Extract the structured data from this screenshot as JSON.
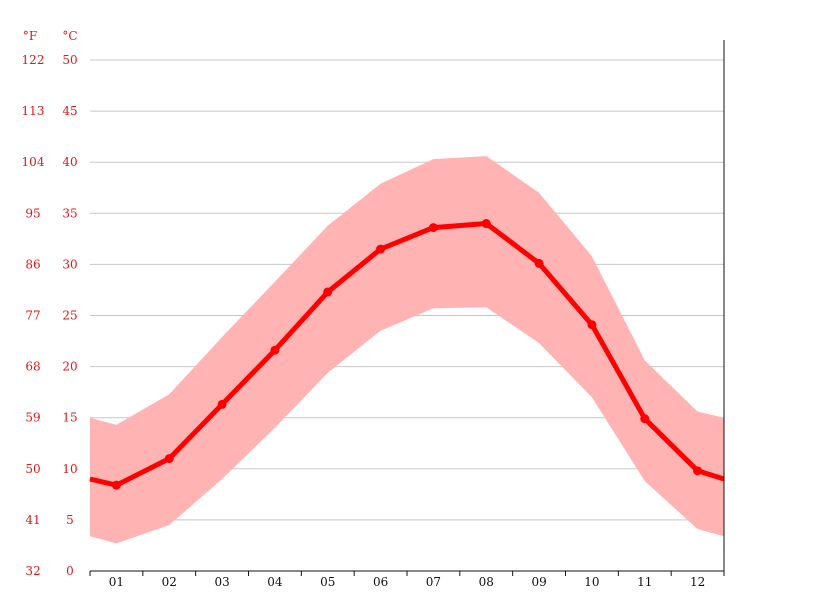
{
  "chart_data": {
    "type": "area",
    "unit_left": "°F",
    "unit_right": "°C",
    "categories": [
      "01",
      "02",
      "03",
      "04",
      "05",
      "06",
      "07",
      "08",
      "09",
      "10",
      "11",
      "12"
    ],
    "x": [
      1,
      2,
      3,
      4,
      5,
      6,
      7,
      8,
      9,
      10,
      11,
      12
    ],
    "y_ticks_c": [
      "0",
      "5",
      "10",
      "15",
      "20",
      "25",
      "30",
      "35",
      "40",
      "45",
      "50"
    ],
    "y_ticks_f": [
      "32",
      "41",
      "50",
      "59",
      "68",
      "77",
      "86",
      "95",
      "104",
      "113",
      "122"
    ],
    "ylim": [
      0,
      50
    ],
    "grid": true,
    "series": [
      {
        "kind": "line",
        "color": "#ff0000",
        "edge_start": 9.0,
        "edge_end": 9.0,
        "values": [
          8.4,
          11.0,
          16.3,
          21.6,
          27.3,
          31.5,
          33.6,
          34.0,
          30.1,
          24.1,
          14.9,
          9.8
        ]
      },
      {
        "kind": "band",
        "color": "#ffb3b3",
        "high_edge_start": 15.0,
        "high_edge_end": 15.0,
        "low_edge_start": 3.4,
        "low_edge_end": 3.4,
        "high": [
          14.3,
          17.3,
          22.9,
          28.3,
          33.8,
          37.9,
          40.3,
          40.6,
          37.0,
          30.8,
          20.6,
          15.6
        ],
        "low": [
          2.7,
          4.5,
          9.0,
          14.0,
          19.4,
          23.5,
          25.7,
          25.8,
          22.3,
          17.0,
          8.8,
          4.1
        ]
      }
    ]
  }
}
